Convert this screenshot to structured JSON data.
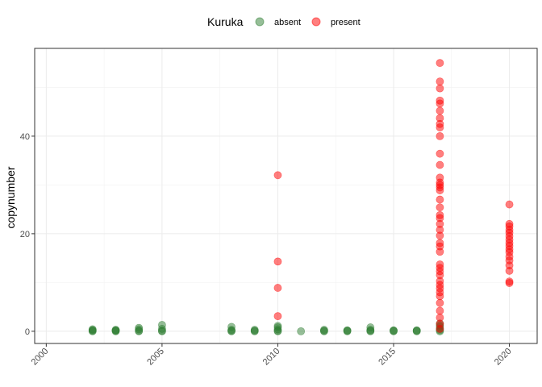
{
  "chart_data": {
    "type": "scatter",
    "legend": {
      "title": "Kuruka",
      "placement": "top"
    },
    "xlabel": "",
    "ylabel": "copynumber",
    "xlim": [
      1999.5,
      2021.2
    ],
    "ylim": [
      -2.5,
      58
    ],
    "xticks": [
      2000,
      2005,
      2010,
      2015,
      2020
    ],
    "yticks": [
      0,
      20,
      40
    ],
    "grid": true,
    "series": [
      {
        "name": "absent",
        "color": "#2E7D32",
        "points": [
          [
            2002,
            0.1
          ],
          [
            2002,
            0.25
          ],
          [
            2002,
            0.4
          ],
          [
            2002,
            0.0
          ],
          [
            2003,
            0.1
          ],
          [
            2003,
            0.2
          ],
          [
            2003,
            0.0
          ],
          [
            2003,
            0.3
          ],
          [
            2004,
            0.1
          ],
          [
            2004,
            0.4
          ],
          [
            2004,
            0.7
          ],
          [
            2004,
            0.0
          ],
          [
            2005,
            0.1
          ],
          [
            2005,
            0.5
          ],
          [
            2005,
            1.3
          ],
          [
            2005,
            0.0
          ],
          [
            2008,
            0.1
          ],
          [
            2008,
            0.3
          ],
          [
            2008,
            0.9
          ],
          [
            2008,
            0.0
          ],
          [
            2009,
            0.1
          ],
          [
            2009,
            0.3
          ],
          [
            2009,
            0.0
          ],
          [
            2010,
            0.1
          ],
          [
            2010,
            0.4
          ],
          [
            2010,
            0.8
          ],
          [
            2010,
            1.1
          ],
          [
            2010,
            0.0
          ],
          [
            2011,
            0.0
          ],
          [
            2012,
            0.1
          ],
          [
            2012,
            0.3
          ],
          [
            2012,
            0.0
          ],
          [
            2013,
            0.1
          ],
          [
            2013,
            0.2
          ],
          [
            2013,
            0.0
          ],
          [
            2014,
            0.1
          ],
          [
            2014,
            0.3
          ],
          [
            2014,
            0.8
          ],
          [
            2014,
            0.0
          ],
          [
            2015,
            0.0
          ],
          [
            2015,
            0.2
          ],
          [
            2015,
            0.1
          ],
          [
            2016,
            0.1
          ],
          [
            2016,
            0.2
          ],
          [
            2016,
            0.0
          ],
          [
            2017,
            0.2
          ],
          [
            2017,
            0.5
          ],
          [
            2017,
            0.9
          ],
          [
            2017,
            1.2
          ],
          [
            2017,
            1.6
          ],
          [
            2017,
            0.0
          ]
        ]
      },
      {
        "name": "present",
        "color": "#FF0000",
        "points": [
          [
            2010,
            3.1
          ],
          [
            2010,
            8.9
          ],
          [
            2010,
            14.3
          ],
          [
            2010,
            32.0
          ],
          [
            2017,
            0.5
          ],
          [
            2017,
            1.5
          ],
          [
            2017,
            2.8
          ],
          [
            2017,
            4.2
          ],
          [
            2017,
            5.8
          ],
          [
            2017,
            7.2
          ],
          [
            2017,
            8.0
          ],
          [
            2017,
            8.8
          ],
          [
            2017,
            9.5
          ],
          [
            2017,
            10.3
          ],
          [
            2017,
            11.5
          ],
          [
            2017,
            12.3
          ],
          [
            2017,
            13.0
          ],
          [
            2017,
            13.7
          ],
          [
            2017,
            16.3
          ],
          [
            2017,
            17.4
          ],
          [
            2017,
            18.1
          ],
          [
            2017,
            19.6
          ],
          [
            2017,
            20.8
          ],
          [
            2017,
            22.0
          ],
          [
            2017,
            23.2
          ],
          [
            2017,
            23.8
          ],
          [
            2017,
            25.4
          ],
          [
            2017,
            27.0
          ],
          [
            2017,
            28.9
          ],
          [
            2017,
            29.5
          ],
          [
            2017,
            30.0
          ],
          [
            2017,
            30.5
          ],
          [
            2017,
            31.5
          ],
          [
            2017,
            34.1
          ],
          [
            2017,
            36.4
          ],
          [
            2017,
            40.0
          ],
          [
            2017,
            41.8
          ],
          [
            2017,
            42.5
          ],
          [
            2017,
            43.7
          ],
          [
            2017,
            45.2
          ],
          [
            2017,
            46.7
          ],
          [
            2017,
            47.3
          ],
          [
            2017,
            49.8
          ],
          [
            2017,
            51.2
          ],
          [
            2017,
            55.0
          ],
          [
            2020,
            9.9
          ],
          [
            2020,
            10.2
          ],
          [
            2020,
            12.4
          ],
          [
            2020,
            13.5
          ],
          [
            2020,
            14.5
          ],
          [
            2020,
            15.3
          ],
          [
            2020,
            16.2
          ],
          [
            2020,
            16.8
          ],
          [
            2020,
            17.5
          ],
          [
            2020,
            18.1
          ],
          [
            2020,
            18.8
          ],
          [
            2020,
            19.5
          ],
          [
            2020,
            20.2
          ],
          [
            2020,
            20.8
          ],
          [
            2020,
            21.5
          ],
          [
            2020,
            22.0
          ],
          [
            2020,
            26.0
          ]
        ]
      }
    ]
  }
}
